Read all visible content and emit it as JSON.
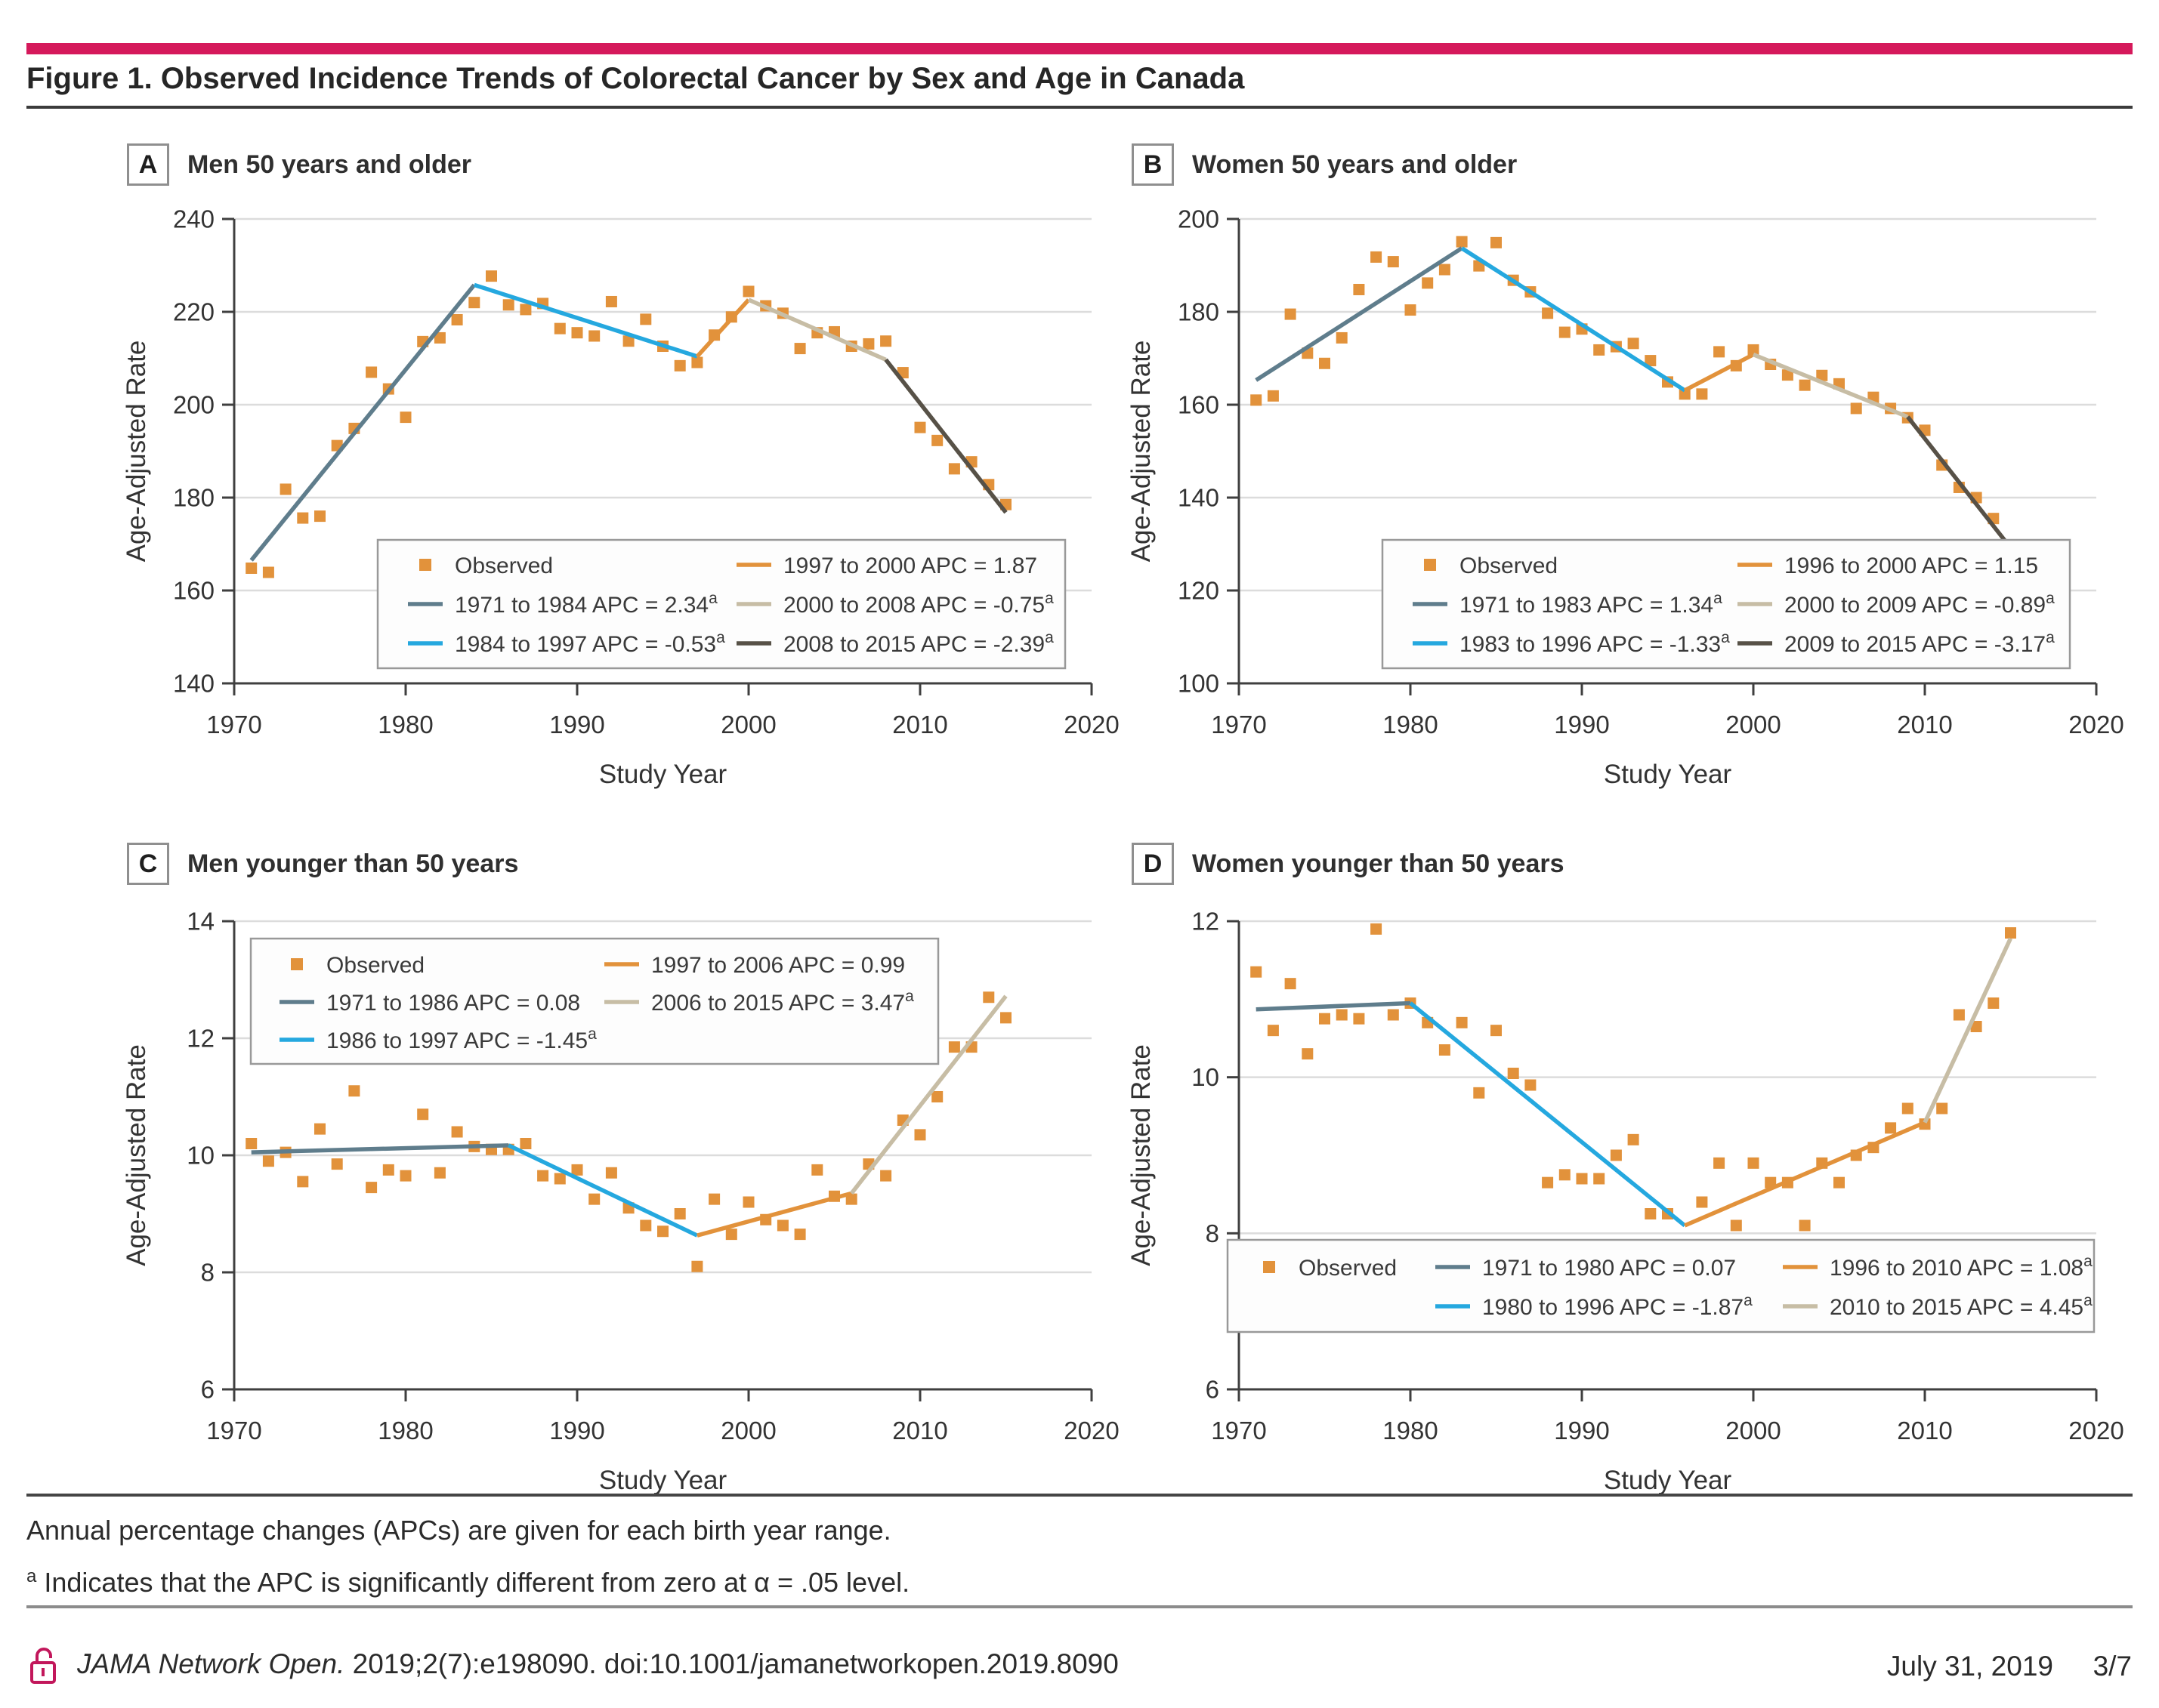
{
  "page": {
    "figure_title": "Figure 1. Observed Incidence Trends of Colorectal Cancer by Sex and Age in Canada",
    "note1": "Annual percentage changes (APCs) are given for each birth year range.",
    "note2_sup": "a",
    "note2": "Indicates that the APC is significantly different from zero at α = .05 level.",
    "footer_journal": "JAMA Network Open.",
    "footer_citation": " 2019;2(7):e198090. doi:10.1001/jamanetworkopen.2019.8090",
    "footer_date": "July 31, 2019",
    "footer_page": "3/7"
  },
  "colors": {
    "accent_pink": "#D5195B",
    "orange": "#E2923B",
    "slate": "#5F7D8C",
    "blue": "#25A8DF",
    "tan": "#C7BDA5",
    "dark": "#575147",
    "gridline": "#DCDCDC",
    "axis": "#3F3F3F",
    "tick_text": "#333333",
    "legend_border": "#999999",
    "legend_bg": "#FDFDFD"
  },
  "chart_data": [
    {
      "panel": "A",
      "title": "Men 50 years and older",
      "type": "scatter",
      "xlabel": "Study Year",
      "ylabel": "Age-Adjusted Rate",
      "xlim": [
        1970,
        2020
      ],
      "ylim": [
        140,
        240
      ],
      "xticks": [
        1970,
        1980,
        1990,
        2000,
        2010,
        2020
      ],
      "yticks": [
        140,
        160,
        180,
        200,
        220,
        240
      ],
      "grid": "horizontal",
      "legend_position": "bottom-right",
      "observed_label": "Observed",
      "x_start": 1971,
      "observed": [
        164.8,
        163.9,
        181.8,
        175.6,
        176.0,
        191.2,
        194.9,
        207.0,
        203.4,
        197.3,
        213.6,
        214.4,
        218.3,
        222.0,
        227.7,
        221.5,
        220.5,
        221.8,
        216.4,
        215.5,
        214.8,
        222.2,
        213.7,
        218.4,
        212.6,
        208.4,
        209.1,
        215.0,
        218.9,
        224.4,
        221.3,
        219.7,
        212.1,
        215.5,
        215.7,
        212.6,
        213.1,
        213.7,
        206.9,
        195.1,
        192.3,
        186.2,
        187.7,
        182.8,
        178.5
      ],
      "segments": [
        {
          "label": "1971 to 1984 APC = 2.34",
          "sup": "a",
          "color_key": "slate",
          "x": [
            1971,
            1984
          ],
          "y": [
            166.5,
            225.8
          ]
        },
        {
          "label": "1984 to 1997 APC = -0.53",
          "sup": "a",
          "color_key": "blue",
          "x": [
            1984,
            1997
          ],
          "y": [
            225.8,
            210.4
          ]
        },
        {
          "label": "1997 to 2000 APC = 1.87",
          "sup": "",
          "color_key": "orange",
          "x": [
            1997,
            2000
          ],
          "y": [
            210.4,
            222.6
          ]
        },
        {
          "label": "2000 to 2008 APC = -0.75",
          "sup": "a",
          "color_key": "tan",
          "x": [
            2000,
            2008
          ],
          "y": [
            222.6,
            209.7
          ]
        },
        {
          "label": "2008 to 2015 APC = -2.39",
          "sup": "a",
          "color_key": "dark",
          "x": [
            2008,
            2015
          ],
          "y": [
            209.7,
            176.8
          ]
        }
      ]
    },
    {
      "panel": "B",
      "title": "Women 50 years and older",
      "type": "scatter",
      "xlabel": "Study Year",
      "ylabel": "Age-Adjusted Rate",
      "xlim": [
        1970,
        2020
      ],
      "ylim": [
        100,
        200
      ],
      "xticks": [
        1970,
        1980,
        1990,
        2000,
        2010,
        2020
      ],
      "yticks": [
        100,
        120,
        140,
        160,
        180,
        200
      ],
      "grid": "horizontal",
      "legend_position": "bottom-right",
      "observed_label": "Observed",
      "x_start": 1971,
      "observed": [
        161.0,
        161.9,
        179.5,
        171.1,
        168.9,
        174.4,
        184.8,
        191.8,
        190.8,
        180.4,
        186.2,
        189.1,
        195.1,
        189.9,
        194.9,
        186.8,
        184.3,
        179.7,
        175.6,
        176.3,
        171.8,
        172.5,
        173.2,
        169.5,
        164.9,
        162.3,
        162.3,
        171.4,
        168.4,
        171.8,
        168.7,
        166.4,
        164.2,
        166.3,
        164.5,
        159.2,
        161.6,
        159.2,
        157.2,
        154.5,
        147.0,
        142.2,
        140.0,
        135.5,
        128.6
      ],
      "segments": [
        {
          "label": "1971 to 1983 APC = 1.34",
          "sup": "a",
          "color_key": "slate",
          "x": [
            1971,
            1983
          ],
          "y": [
            165.3,
            193.7
          ]
        },
        {
          "label": "1983 to 1996 APC = -1.33",
          "sup": "a",
          "color_key": "blue",
          "x": [
            1983,
            1996
          ],
          "y": [
            193.7,
            163.1
          ]
        },
        {
          "label": "1996 to 2000 APC = 1.15",
          "sup": "",
          "color_key": "orange",
          "x": [
            1996,
            2000
          ],
          "y": [
            163.1,
            170.8
          ]
        },
        {
          "label": "2000 to 2009 APC = -0.89",
          "sup": "a",
          "color_key": "tan",
          "x": [
            2000,
            2009
          ],
          "y": [
            170.8,
            157.4
          ]
        },
        {
          "label": "2009 to 2015 APC = -3.17",
          "sup": "a",
          "color_key": "dark",
          "x": [
            2009,
            2015
          ],
          "y": [
            157.4,
            129.2
          ]
        }
      ]
    },
    {
      "panel": "C",
      "title": "Men younger than 50 years",
      "type": "scatter",
      "xlabel": "Study Year",
      "ylabel": "Age-Adjusted Rate",
      "xlim": [
        1970,
        2020
      ],
      "ylim": [
        6,
        14
      ],
      "xticks": [
        1970,
        1980,
        1990,
        2000,
        2010,
        2020
      ],
      "yticks": [
        6,
        8,
        10,
        12,
        14
      ],
      "grid": "horizontal",
      "legend_position": "top-left",
      "observed_label": "Observed",
      "x_start": 1971,
      "observed": [
        10.2,
        9.9,
        10.05,
        9.55,
        10.45,
        9.85,
        11.1,
        9.45,
        9.75,
        9.65,
        10.7,
        9.7,
        10.4,
        10.15,
        10.1,
        10.1,
        10.2,
        9.65,
        9.6,
        9.75,
        9.25,
        9.7,
        9.1,
        8.8,
        8.7,
        9.0,
        8.1,
        9.25,
        8.65,
        9.2,
        8.9,
        8.8,
        8.65,
        9.75,
        9.3,
        9.25,
        9.85,
        9.65,
        10.6,
        10.35,
        11.0,
        11.85,
        11.85,
        12.7,
        12.35
      ],
      "segments": [
        {
          "label": "1971 to 1986 APC = 0.08",
          "sup": "",
          "color_key": "slate",
          "x": [
            1971,
            1986
          ],
          "y": [
            10.05,
            10.17
          ]
        },
        {
          "label": "1986 to 1997 APC = -1.45",
          "sup": "a",
          "color_key": "blue",
          "x": [
            1986,
            1997
          ],
          "y": [
            10.17,
            8.63
          ]
        },
        {
          "label": "1997 to 2006 APC = 0.99",
          "sup": "",
          "color_key": "orange",
          "x": [
            1997,
            2006
          ],
          "y": [
            8.63,
            9.35
          ]
        },
        {
          "label": "2006 to 2015 APC = 3.47",
          "sup": "a",
          "color_key": "tan",
          "x": [
            2006,
            2015
          ],
          "y": [
            9.35,
            12.72
          ]
        }
      ]
    },
    {
      "panel": "D",
      "title": "Women younger than 50 years",
      "type": "scatter",
      "xlabel": "Study Year",
      "ylabel": "Age-Adjusted Rate",
      "xlim": [
        1970,
        2020
      ],
      "ylim": [
        6,
        12
      ],
      "xticks": [
        1970,
        1980,
        1990,
        2000,
        2010,
        2020
      ],
      "yticks": [
        6,
        8,
        10,
        12
      ],
      "grid": "horizontal",
      "legend_position": "bottom-center",
      "observed_label": "Observed",
      "x_start": 1971,
      "observed": [
        11.35,
        10.6,
        11.2,
        10.3,
        10.75,
        10.8,
        10.75,
        11.9,
        10.8,
        10.95,
        10.7,
        10.35,
        10.7,
        9.8,
        10.6,
        10.05,
        9.9,
        8.65,
        8.75,
        8.7,
        8.7,
        9.0,
        9.2,
        8.25,
        8.25,
        7.6,
        8.4,
        8.9,
        8.1,
        8.9,
        8.65,
        8.65,
        8.1,
        8.9,
        8.65,
        9.0,
        9.1,
        9.35,
        9.6,
        9.4,
        9.6,
        10.8,
        10.65,
        10.95,
        11.85
      ],
      "segments": [
        {
          "label": "1971 to 1980 APC = 0.07",
          "sup": "",
          "color_key": "slate",
          "x": [
            1971,
            1980
          ],
          "y": [
            10.87,
            10.95
          ]
        },
        {
          "label": "1980 to 1996 APC = -1.87",
          "sup": "a",
          "color_key": "blue",
          "x": [
            1980,
            1996
          ],
          "y": [
            10.95,
            8.1
          ]
        },
        {
          "label": "1996 to 2010 APC = 1.08",
          "sup": "a",
          "color_key": "orange",
          "x": [
            1996,
            2010
          ],
          "y": [
            8.1,
            9.42
          ]
        },
        {
          "label": "2010 to 2015 APC = 4.45",
          "sup": "a",
          "color_key": "tan",
          "x": [
            2010,
            2015
          ],
          "y": [
            9.42,
            11.78
          ]
        }
      ]
    }
  ]
}
